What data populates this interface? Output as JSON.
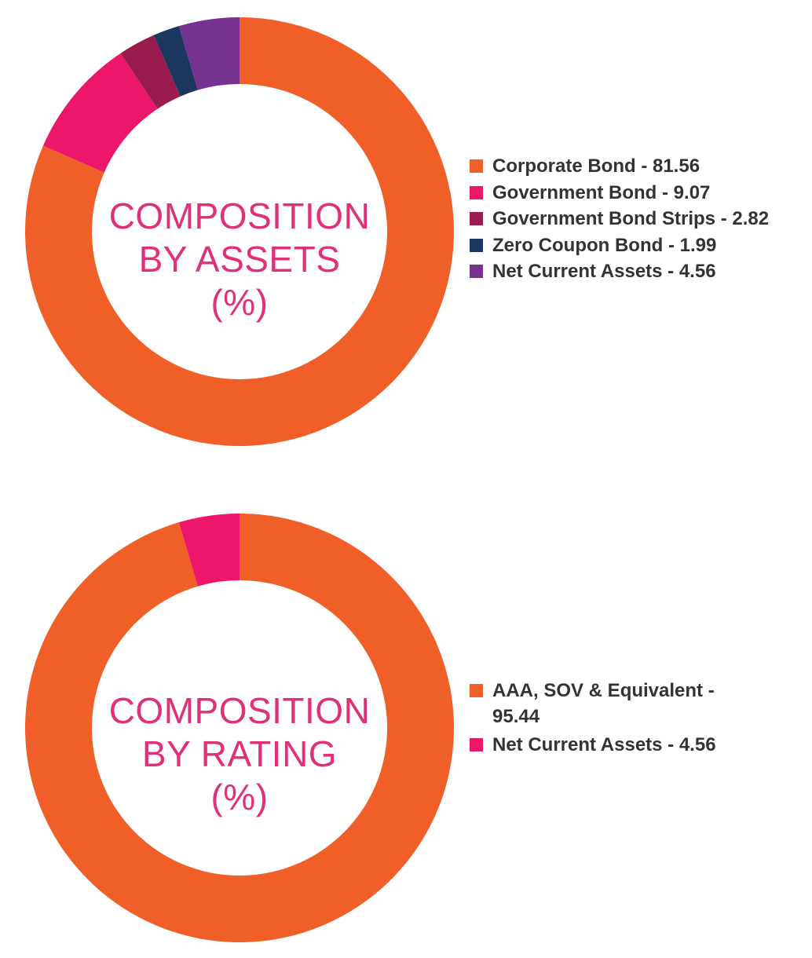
{
  "colors": {
    "orange": "#f15f28",
    "pink": "#ec176b",
    "maroon": "#9a1b4e",
    "navy": "#1b365f",
    "purple": "#773191",
    "title": "#e0307a",
    "legend_text": "#333333"
  },
  "chart_data": [
    {
      "type": "pie",
      "subtype": "donut",
      "center_label": [
        "COMPOSITION",
        "BY ASSETS",
        "(%)"
      ],
      "legend_placement": "right",
      "series": [
        {
          "label": "Corporate Bond - 81.56",
          "name": "Corporate Bond",
          "value": 81.56,
          "color": "#f15f28"
        },
        {
          "label": "Government Bond - 9.07",
          "name": "Government Bond",
          "value": 9.07,
          "color": "#ec176b"
        },
        {
          "label": "Government Bond Strips - 2.82",
          "name": "Government Bond Strips",
          "value": 2.82,
          "color": "#9a1b4e"
        },
        {
          "label": "Zero Coupon Bond - 1.99",
          "name": "Zero Coupon Bond",
          "value": 1.99,
          "color": "#1b365f"
        },
        {
          "label": "Net Current Assets - 4.56",
          "name": "Net Current Assets",
          "value": 4.56,
          "color": "#773191"
        }
      ]
    },
    {
      "type": "pie",
      "subtype": "donut",
      "center_label": [
        "COMPOSITION",
        "BY RATING",
        "(%)"
      ],
      "legend_placement": "right",
      "series": [
        {
          "label": "AAA, SOV & Equivalent - 95.44",
          "name": "AAA, SOV & Equivalent",
          "value": 95.44,
          "color": "#f15f28"
        },
        {
          "label": "Net Current Assets - 4.56",
          "name": "Net Current Assets",
          "value": 4.56,
          "color": "#ec176b"
        }
      ]
    }
  ]
}
